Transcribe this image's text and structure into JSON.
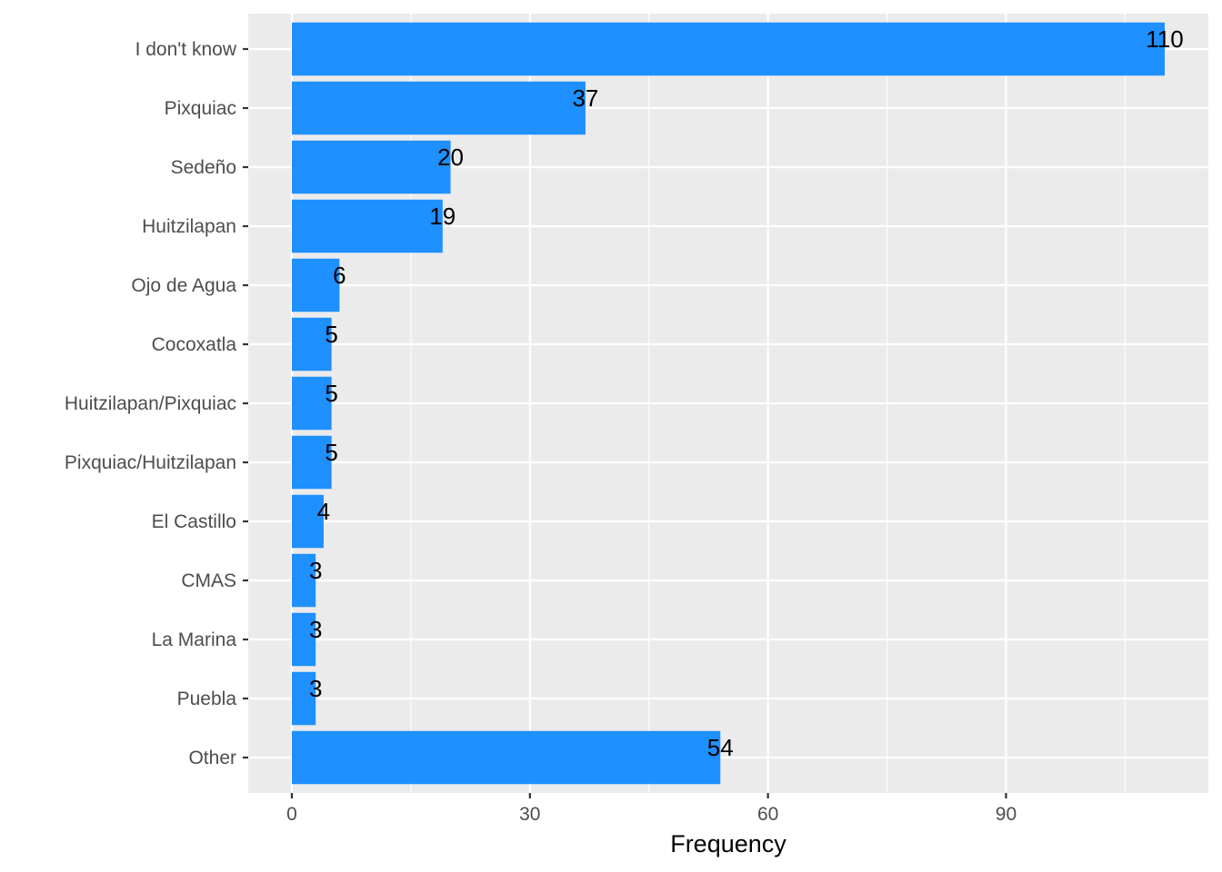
{
  "chart_data": {
    "type": "bar",
    "orientation": "horizontal",
    "categories": [
      "I don't know",
      "Pixquiac",
      "Sedeño",
      "Huitzilapan",
      "Ojo de Agua",
      "Cocoxatla",
      "Huitzilapan/Pixquiac",
      "Pixquiac/Huitzilapan",
      "El Castillo",
      "CMAS",
      "La Marina",
      "Puebla",
      "Other"
    ],
    "values": [
      110,
      37,
      20,
      19,
      6,
      5,
      5,
      5,
      4,
      3,
      3,
      3,
      54
    ],
    "title": "",
    "xlabel": "Frequency",
    "ylabel": "",
    "xlim": [
      -5.5,
      115.5
    ],
    "x_ticks": [
      0,
      30,
      60,
      90
    ],
    "grid": true,
    "colors": {
      "bar": "#1E90FF",
      "panel": "#EBEBEB",
      "grid": "#FFFFFF"
    }
  }
}
